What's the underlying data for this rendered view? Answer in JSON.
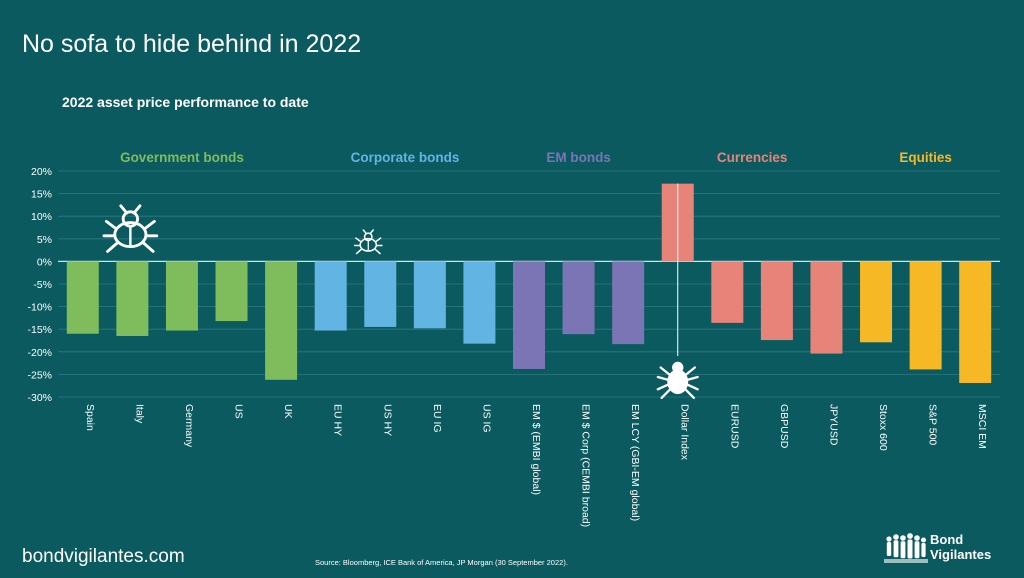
{
  "title": "No sofa to hide behind in 2022",
  "footer": {
    "url": "bondvigilantes.com",
    "source": "Source: Bloomberg, ICE Bank of America, JP Morgan (30 September 2022).",
    "logo_line1": "Bond",
    "logo_line2": "Vigilantes"
  },
  "chart_data": {
    "type": "bar",
    "title": "2022 asset price performance to date",
    "ylim": [
      -30,
      20
    ],
    "yticks": [
      20,
      15,
      10,
      5,
      0,
      -5,
      -10,
      -15,
      -20,
      -25,
      -30
    ],
    "ytick_labels": [
      "20%",
      "15%",
      "10%",
      "5%",
      "0%",
      "-5%",
      "-10%",
      "-15%",
      "-20%",
      "-25%",
      "-30%"
    ],
    "grid": true,
    "categories": [
      "Spain",
      "Italy",
      "Germany",
      "US",
      "UK",
      "EU HY",
      "US HY",
      "EU IG",
      "US IG",
      "EM $ (EMBI global)",
      "EM $ Corp (CEMBI broad)",
      "EM LCY (GBI-EM global)",
      "Dollar Index",
      "EURUSD",
      "GBPUSD",
      "JPYUSD",
      "Stoxx 600",
      "S&P 500",
      "MSCI EM"
    ],
    "values": [
      -16,
      -16.5,
      -15.3,
      -13.2,
      -26.2,
      -15.3,
      -14.5,
      -14.8,
      -18.2,
      -23.8,
      -16.1,
      -18.3,
      17.2,
      -13.6,
      -17.4,
      -20.4,
      -17.9,
      -23.9,
      -26.9
    ],
    "groups": [
      {
        "name": "Government bonds",
        "start": 0,
        "end": 4,
        "color": "#7ebc5c"
      },
      {
        "name": "Corporate bonds",
        "start": 5,
        "end": 8,
        "color": "#62b4e3"
      },
      {
        "name": "EM bonds",
        "start": 9,
        "end": 11,
        "color": "#7b74b5"
      },
      {
        "name": "Currencies",
        "start": 12,
        "end": 15,
        "color": "#e8837a"
      },
      {
        "name": "Equities",
        "start": 16,
        "end": 18,
        "color": "#f7b825"
      }
    ],
    "annotations": [
      {
        "icon": "bug-icon",
        "category_index": 1,
        "size": "large"
      },
      {
        "icon": "bug-icon",
        "category_index": 6,
        "size": "small"
      },
      {
        "icon": "spider-icon",
        "category_index": 12,
        "size": "medium"
      }
    ]
  }
}
